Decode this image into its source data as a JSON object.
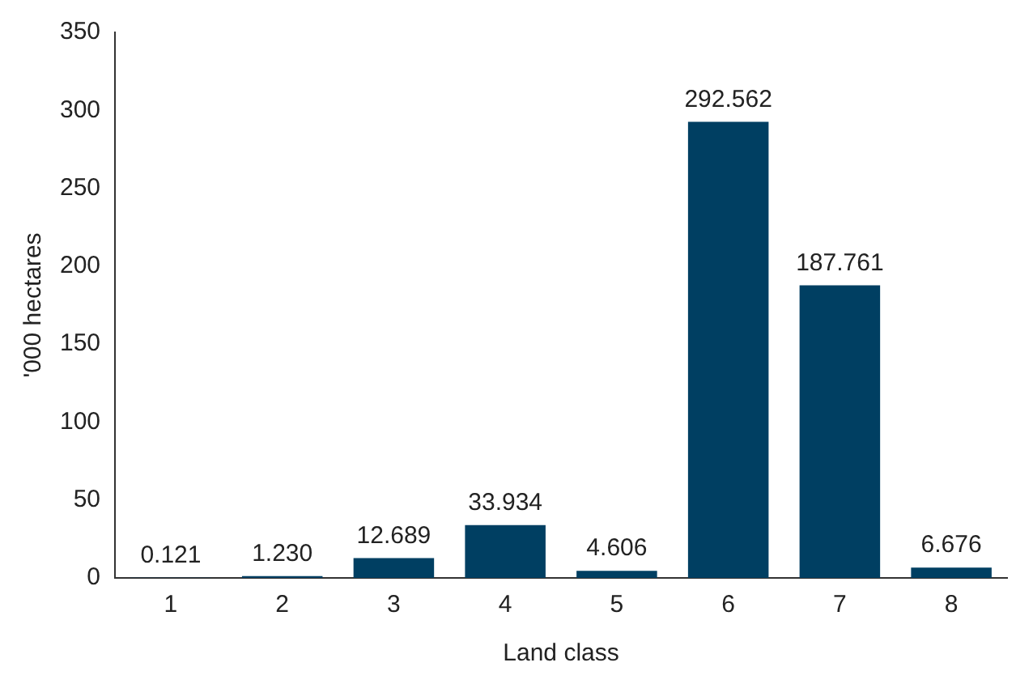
{
  "chart_data": {
    "type": "bar",
    "xlabel": "Land class",
    "ylabel": "'000 hectares",
    "categories": [
      "1",
      "2",
      "3",
      "4",
      "5",
      "6",
      "7",
      "8"
    ],
    "values": [
      0.121,
      1.23,
      12.689,
      33.934,
      4.606,
      292.562,
      187.761,
      6.676
    ],
    "value_labels": [
      "0.121",
      "1.230",
      "12.689",
      "33.934",
      "4.606",
      "292.562",
      "187.761",
      "6.676"
    ],
    "color": "#003f62",
    "ylim": [
      0,
      350
    ],
    "yticks": [
      0,
      50,
      100,
      150,
      200,
      250,
      300,
      350
    ],
    "grid": false,
    "legend": false
  }
}
